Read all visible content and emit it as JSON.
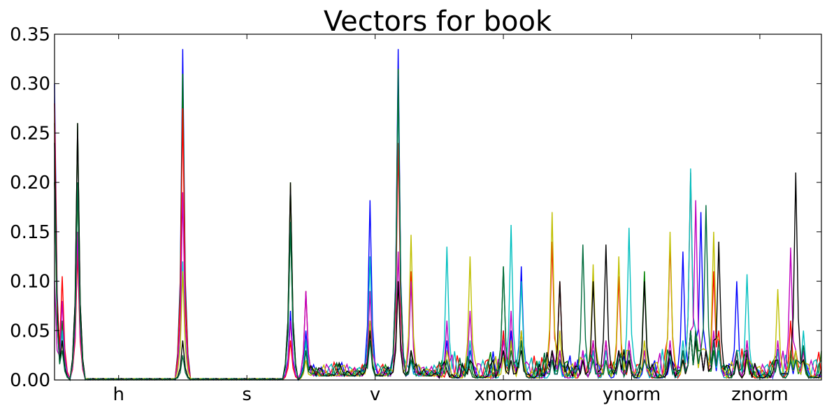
{
  "chart_data": {
    "type": "line",
    "title": "Vectors for book",
    "xlabel": "",
    "ylabel": "",
    "ylim": [
      0,
      0.35
    ],
    "yticks": [
      "0.00",
      "0.05",
      "0.10",
      "0.15",
      "0.20",
      "0.25",
      "0.30",
      "0.35"
    ],
    "grid": false,
    "legend": "none",
    "x_groups": [
      "h",
      "s",
      "v",
      "xnorm",
      "ynorm",
      "znorm"
    ],
    "x_group_size": 50,
    "colors": [
      "#0000ff",
      "#008000",
      "#ff0000",
      "#00bfbf",
      "#bf00bf",
      "#bfbf00",
      "#000000",
      "#006b3c"
    ],
    "x_index_count": 300,
    "peaks": [
      {
        "x": 0,
        "values": [
          0.3,
          0.26,
          0.28,
          0.2,
          0.1,
          0.2,
          0.24,
          0.2
        ]
      },
      {
        "x": 3,
        "values": [
          0.05,
          0.06,
          0.105,
          0.05,
          0.08,
          0.04,
          0.04,
          0.03
        ]
      },
      {
        "x": 9,
        "values": [
          0.14,
          0.26,
          0.13,
          0.2,
          0.15,
          0.2,
          0.26,
          0.2
        ]
      },
      {
        "x": 50,
        "values": [
          0.335,
          0.31,
          0.275,
          0.12,
          0.19,
          0.11,
          0.04,
          0.025
        ]
      },
      {
        "x": 92,
        "values": [
          0.07,
          0.16,
          0.04,
          0.2,
          0.06,
          0.2,
          0.2,
          0.16
        ]
      },
      {
        "x": 98,
        "values": [
          0.05,
          0.04,
          0.09,
          0.04,
          0.09,
          0.02,
          0.03,
          0.03
        ]
      },
      {
        "x": 123,
        "values": [
          0.182,
          0.06,
          0.05,
          0.125,
          0.09,
          0.06,
          0.05,
          0.04
        ]
      },
      {
        "x": 134,
        "values": [
          0.335,
          0.315,
          0.24,
          0.3,
          0.13,
          0.1,
          0.1,
          0.31
        ]
      },
      {
        "x": 139,
        "values": [
          0.02,
          0.03,
          0.11,
          0.02,
          0.1,
          0.147,
          0.03,
          0.02
        ]
      },
      {
        "x": 153,
        "values": [
          0.04,
          0.02,
          0.01,
          0.135,
          0.06,
          0.03,
          0.01,
          0.02
        ]
      },
      {
        "x": 162,
        "values": [
          0.03,
          0.02,
          0.01,
          0.04,
          0.07,
          0.125,
          0.02,
          0.01
        ]
      },
      {
        "x": 175,
        "values": [
          0.05,
          0.115,
          0.05,
          0.03,
          0.04,
          0.02,
          0.03,
          0.115
        ]
      },
      {
        "x": 178,
        "values": [
          0.05,
          0.04,
          0.03,
          0.157,
          0.07,
          0.04,
          0.02,
          0.03
        ]
      },
      {
        "x": 182,
        "values": [
          0.115,
          0.04,
          0.05,
          0.1,
          0.05,
          0.05,
          0.03,
          0.04
        ]
      },
      {
        "x": 194,
        "values": [
          0.02,
          0.03,
          0.14,
          0.02,
          0.03,
          0.17,
          0.03,
          0.02
        ]
      },
      {
        "x": 197,
        "values": [
          0.02,
          0.03,
          0.1,
          0.01,
          0.03,
          0.05,
          0.1,
          0.02
        ]
      },
      {
        "x": 206,
        "values": [
          0.03,
          0.02,
          0.02,
          0.02,
          0.03,
          0.02,
          0.02,
          0.137
        ]
      },
      {
        "x": 210,
        "values": [
          0.03,
          0.02,
          0.04,
          0.03,
          0.04,
          0.117,
          0.1,
          0.02
        ]
      },
      {
        "x": 215,
        "values": [
          0.02,
          0.02,
          0.04,
          0.03,
          0.04,
          0.02,
          0.137,
          0.02
        ]
      },
      {
        "x": 220,
        "values": [
          0.03,
          0.02,
          0.105,
          0.03,
          0.03,
          0.125,
          0.03,
          0.02
        ]
      },
      {
        "x": 224,
        "values": [
          0.03,
          0.02,
          0.02,
          0.154,
          0.04,
          0.03,
          0.02,
          0.03
        ]
      },
      {
        "x": 230,
        "values": [
          0.02,
          0.11,
          0.03,
          0.03,
          0.03,
          0.04,
          0.1,
          0.02
        ]
      },
      {
        "x": 240,
        "values": [
          0.02,
          0.03,
          0.14,
          0.03,
          0.04,
          0.15,
          0.03,
          0.02
        ]
      },
      {
        "x": 245,
        "values": [
          0.13,
          0.03,
          0.02,
          0.04,
          0.03,
          0.02,
          0.02,
          0.03
        ]
      },
      {
        "x": 248,
        "values": [
          0.05,
          0.05,
          0.21,
          0.214,
          0.05,
          0.05,
          0.05,
          0.05
        ]
      },
      {
        "x": 250,
        "values": [
          0.04,
          0.05,
          0.05,
          0.05,
          0.182,
          0.04,
          0.04,
          0.05
        ]
      },
      {
        "x": 252,
        "values": [
          0.17,
          0.03,
          0.03,
          0.03,
          0.03,
          0.03,
          0.03,
          0.03
        ]
      },
      {
        "x": 254,
        "values": [
          0.03,
          0.03,
          0.03,
          0.03,
          0.03,
          0.03,
          0.03,
          0.177
        ]
      },
      {
        "x": 257,
        "values": [
          0.03,
          0.03,
          0.11,
          0.04,
          0.05,
          0.15,
          0.04,
          0.04
        ]
      },
      {
        "x": 259,
        "values": [
          0.03,
          0.03,
          0.05,
          0.03,
          0.04,
          0.04,
          0.14,
          0.04
        ]
      },
      {
        "x": 266,
        "values": [
          0.1,
          0.03,
          0.02,
          0.03,
          0.03,
          0.02,
          0.02,
          0.03
        ]
      },
      {
        "x": 270,
        "values": [
          0.03,
          0.02,
          0.04,
          0.107,
          0.04,
          0.02,
          0.02,
          0.03
        ]
      },
      {
        "x": 282,
        "values": [
          0.02,
          0.02,
          0.03,
          0.03,
          0.04,
          0.092,
          0.02,
          0.02
        ]
      },
      {
        "x": 287,
        "values": [
          0.02,
          0.02,
          0.06,
          0.03,
          0.134,
          0.03,
          0.02,
          0.02
        ]
      },
      {
        "x": 289,
        "values": [
          0.02,
          0.02,
          0.03,
          0.03,
          0.03,
          0.03,
          0.21,
          0.02
        ]
      },
      {
        "x": 292,
        "values": [
          0.02,
          0.02,
          0.03,
          0.05,
          0.03,
          0.02,
          0.02,
          0.035
        ]
      }
    ]
  }
}
